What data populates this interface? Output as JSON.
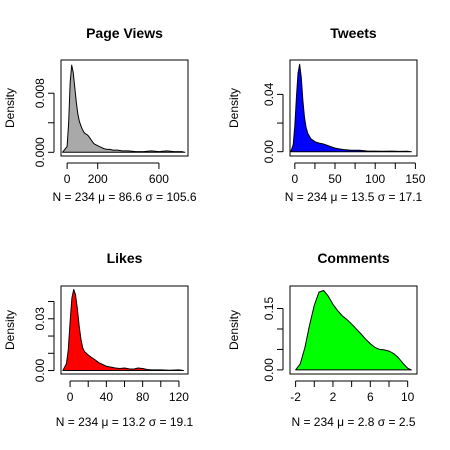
{
  "chart_data": [
    {
      "type": "area",
      "title": "Page Views",
      "xlabel": "N = 234 μ = 86.6 σ = 105.6",
      "ylabel": "Density",
      "fill_color": "#a9a9a9",
      "x_ticks": [
        0,
        200,
        600
      ],
      "y_ticks": [
        "0.000",
        "0.008"
      ],
      "y_minor_ticks": [
        0.004
      ],
      "xlim": [
        -40,
        790
      ],
      "ylim": [
        -0.0005,
        0.0125
      ],
      "x": [
        -30,
        0,
        10,
        20,
        30,
        40,
        50,
        60,
        70,
        80,
        90,
        100,
        110,
        120,
        130,
        140,
        150,
        160,
        170,
        180,
        200,
        220,
        240,
        260,
        280,
        300,
        330,
        360,
        400,
        450,
        500,
        550,
        600,
        650,
        700,
        750,
        770
      ],
      "y": [
        0,
        0.0008,
        0.004,
        0.0095,
        0.0118,
        0.0108,
        0.0088,
        0.0068,
        0.0052,
        0.0042,
        0.0036,
        0.0031,
        0.0027,
        0.0025,
        0.0024,
        0.0022,
        0.0019,
        0.0016,
        0.0013,
        0.0011,
        0.0009,
        0.0007,
        0.0005,
        0.0004,
        0.0004,
        0.0003,
        0.0003,
        0.0002,
        0.0002,
        0.0001,
        0.0001,
        0.0002,
        0.0001,
        0.0002,
        0.0001,
        0.0001,
        0
      ]
    },
    {
      "type": "area",
      "title": "Tweets",
      "xlabel": "N = 234 μ = 13.5 σ = 17.1",
      "ylabel": "Density",
      "fill_color": "#0000ff",
      "x_ticks": [
        0,
        50,
        100,
        150
      ],
      "x_minor_ticks": [
        25,
        75,
        125
      ],
      "y_ticks": [
        "0.00",
        "0.04"
      ],
      "y_minor_ticks": [
        0.02
      ],
      "xlim": [
        -6,
        152
      ],
      "ylim": [
        -0.003,
        0.064
      ],
      "x": [
        -5,
        -2,
        0,
        2,
        4,
        6,
        8,
        10,
        12,
        14,
        16,
        18,
        20,
        25,
        30,
        35,
        40,
        45,
        50,
        55,
        60,
        70,
        80,
        90,
        100,
        110,
        120,
        130,
        140,
        145
      ],
      "y": [
        0,
        0.005,
        0.018,
        0.038,
        0.055,
        0.061,
        0.052,
        0.036,
        0.024,
        0.017,
        0.013,
        0.011,
        0.009,
        0.007,
        0.006,
        0.0055,
        0.0045,
        0.0035,
        0.0025,
        0.002,
        0.0015,
        0.001,
        0.001,
        0.0005,
        0.0004,
        0.0003,
        0.0004,
        0.0002,
        0.0003,
        0
      ]
    },
    {
      "type": "area",
      "title": "Likes",
      "xlabel": "N = 234 μ = 13.2 σ = 19.1",
      "ylabel": "Density",
      "fill_color": "#ff0000",
      "x_ticks": [
        0,
        40,
        80,
        120
      ],
      "x_minor_ticks": [
        20,
        60,
        100
      ],
      "y_ticks": [
        "0.00",
        "0.03"
      ],
      "y_minor_ticks": [
        0.01,
        0.02,
        0.04
      ],
      "xlim": [
        -10,
        130
      ],
      "ylim": [
        -0.002,
        0.049
      ],
      "x": [
        -8,
        -4,
        -2,
        0,
        2,
        4,
        6,
        8,
        10,
        12,
        14,
        16,
        18,
        20,
        24,
        28,
        32,
        36,
        40,
        45,
        50,
        55,
        60,
        65,
        70,
        75,
        80,
        85,
        90,
        100,
        110,
        120,
        125
      ],
      "y": [
        0,
        0.004,
        0.012,
        0.028,
        0.042,
        0.047,
        0.044,
        0.036,
        0.026,
        0.018,
        0.013,
        0.011,
        0.01,
        0.009,
        0.0075,
        0.006,
        0.0045,
        0.0035,
        0.0025,
        0.002,
        0.0015,
        0.0012,
        0.0015,
        0.001,
        0.0008,
        0.0015,
        0.0012,
        0.0006,
        0.0004,
        0.0004,
        0.0002,
        0.0004,
        0
      ]
    },
    {
      "type": "area",
      "title": "Comments",
      "xlabel": "N = 234 μ = 2.8 σ = 2.5",
      "ylabel": "Density",
      "fill_color": "#00ff00",
      "x_ticks": [
        -2,
        2,
        6,
        10
      ],
      "x_minor_ticks": [
        0,
        4,
        8
      ],
      "y_ticks": [
        "0.00",
        "0.15"
      ],
      "y_minor_ticks": [
        0.05,
        0.1
      ],
      "xlim": [
        -2.6,
        11
      ],
      "ylim": [
        -0.01,
        0.205
      ],
      "x": [
        -2,
        -1.5,
        -1,
        -0.5,
        0,
        0.5,
        1,
        1.5,
        2,
        2.5,
        3,
        3.5,
        4,
        4.5,
        5,
        5.5,
        6,
        6.5,
        7,
        7.5,
        8,
        8.5,
        9,
        9.5,
        10,
        10.4
      ],
      "y": [
        0,
        0.015,
        0.055,
        0.11,
        0.158,
        0.19,
        0.194,
        0.18,
        0.16,
        0.145,
        0.132,
        0.123,
        0.112,
        0.1,
        0.088,
        0.075,
        0.064,
        0.055,
        0.05,
        0.049,
        0.046,
        0.04,
        0.03,
        0.016,
        0.004,
        0
      ]
    }
  ]
}
